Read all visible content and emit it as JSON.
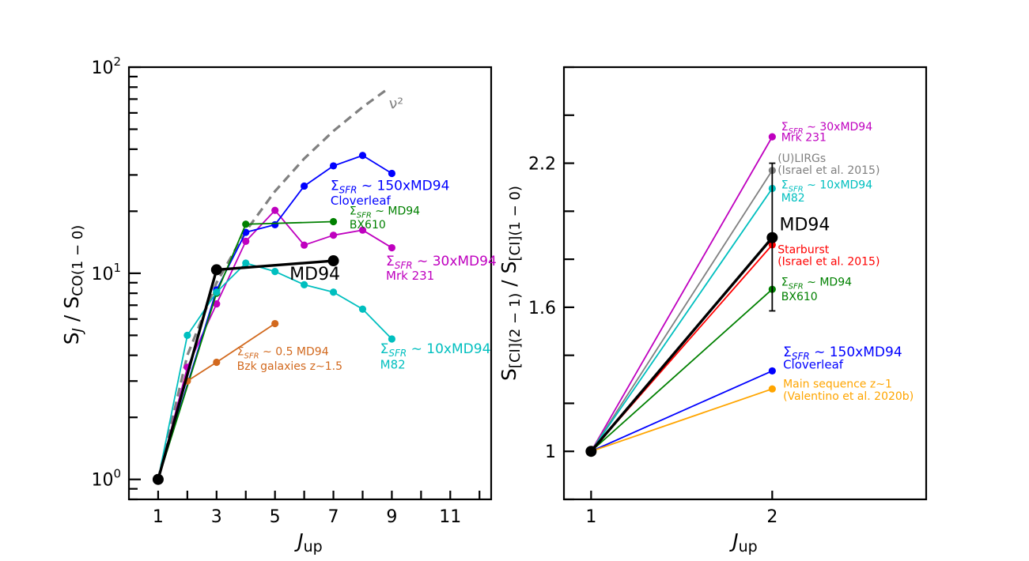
{
  "chart_data": [
    {
      "type": "line",
      "xlabel_main": "J",
      "xlabel_sub": "up",
      "ylabel_main": "S",
      "ylabel_j": "J",
      "ylabel_mid": " / S",
      "ylabel_sub": "CO(1 − 0)",
      "xscale": "linear",
      "yscale": "log",
      "xlim": [
        0,
        12.4
      ],
      "ylim": [
        0.8,
        100
      ],
      "xticks": [
        1,
        3,
        5,
        7,
        9,
        11
      ],
      "ytick_labels": [
        {
          "base": "10",
          "exp": "0",
          "value": 1
        },
        {
          "base": "10",
          "exp": "1",
          "value": 10
        },
        {
          "base": "10",
          "exp": "2",
          "value": 100
        }
      ],
      "grid": false,
      "legend": "none",
      "series": [
        {
          "id": "nu2",
          "color": "#808080",
          "dashed": true,
          "markers": false,
          "x": [
            1,
            2,
            3,
            4,
            5,
            6,
            7,
            8,
            8.85
          ],
          "y": [
            1,
            4,
            9,
            16,
            25,
            36,
            49,
            64,
            78.3
          ],
          "labels": [
            {
              "text": "ν²",
              "x": 8.9,
              "y": 63,
              "size": 19
            }
          ]
        },
        {
          "id": "mrk231",
          "color": "#bf00bf",
          "dashed": false,
          "markers": true,
          "x": [
            1,
            2,
            3,
            4,
            5,
            6,
            7,
            8,
            9
          ],
          "y": [
            1,
            3.5,
            7.1,
            14.3,
            20.2,
            13.7,
            15.3,
            16.2,
            13.3
          ],
          "labels": [
            {
              "text": "Σ",
              "sub": "SFR",
              "rest": " ∼ 30xMD94",
              "x": 8.8,
              "y": 10.9,
              "size": 17
            },
            {
              "text": "Mrk 231",
              "x": 8.8,
              "y": 9.3,
              "size": 15
            }
          ]
        },
        {
          "id": "cloverleaf",
          "color": "#0000ff",
          "dashed": false,
          "markers": true,
          "x": [
            1,
            3,
            4,
            5,
            6,
            7,
            8,
            9
          ],
          "y": [
            1,
            8.3,
            15.8,
            17.2,
            26.5,
            33.2,
            37.3,
            30.5
          ],
          "labels": [
            {
              "text": "Σ",
              "sub": "SFR",
              "rest": " ∼ 150xMD94",
              "x": 6.9,
              "y": 25.4,
              "size": 17
            },
            {
              "text": "Cloverleaf",
              "x": 6.9,
              "y": 21.5,
              "size": 15
            }
          ]
        },
        {
          "id": "bx610",
          "color": "#008000",
          "dashed": false,
          "markers": true,
          "x": [
            1,
            3,
            4,
            7
          ],
          "y": [
            1,
            8.0,
            17.3,
            17.8
          ],
          "labels": [
            {
              "text": "Σ",
              "sub": "SFR",
              "rest": " ∼  MD94",
              "x": 7.55,
              "y": 19.3,
              "size": 14
            },
            {
              "text": "BX610",
              "x": 7.55,
              "y": 16.5,
              "size": 14
            }
          ]
        },
        {
          "id": "m82",
          "color": "#00bfbf",
          "dashed": false,
          "markers": true,
          "x": [
            1,
            2,
            3,
            4,
            5,
            6,
            7,
            8,
            9
          ],
          "y": [
            1,
            5.0,
            8.1,
            11.2,
            10.2,
            8.8,
            8.1,
            6.7,
            4.8
          ],
          "labels": [
            {
              "text": "Σ",
              "sub": "SFR",
              "rest": " ∼ 10xMD94",
              "x": 8.6,
              "y": 4.1,
              "size": 17
            },
            {
              "text": "M82",
              "x": 8.6,
              "y": 3.45,
              "size": 15
            }
          ]
        },
        {
          "id": "bzk",
          "color": "#d2691e",
          "dashed": false,
          "markers": true,
          "x": [
            2,
            3,
            5
          ],
          "y": [
            3.0,
            3.7,
            5.7
          ],
          "labels": [
            {
              "text": "Σ",
              "sub": "SFR",
              "rest": " ∼ 0.5 MD94",
              "x": 3.7,
              "y": 4.0,
              "size": 14
            },
            {
              "text": "Bzk galaxies z∼1.5",
              "x": 3.7,
              "y": 3.4,
              "size": 14
            }
          ]
        },
        {
          "id": "md94",
          "color": "#000000",
          "dashed": false,
          "markers": true,
          "thick": true,
          "x": [
            1,
            3,
            7
          ],
          "y": [
            1,
            10.4,
            11.5
          ],
          "labels": [
            {
              "text": "MD94",
              "x": 5.5,
              "y": 9.3,
              "size": 22
            }
          ]
        }
      ]
    },
    {
      "type": "line",
      "xlabel_main": "J",
      "xlabel_sub": "up",
      "ylabel_main": "S",
      "ylabel_sub1": "[CI](2 − 1)",
      "ylabel_mid": " / S",
      "ylabel_sub2": "[CI](1 − 0)",
      "xscale": "linear",
      "yscale": "linear",
      "xlim": [
        0.85,
        2.85
      ],
      "ylim": [
        0.8,
        2.6
      ],
      "xticks": [
        1,
        2
      ],
      "yticks": [
        1,
        1.6,
        2.2
      ],
      "ytick_labels": [
        "1",
        "1.6",
        "2.2"
      ],
      "grid": false,
      "legend": "none",
      "series": [
        {
          "id": "mrk231",
          "color": "#bf00bf",
          "x": [
            1,
            2
          ],
          "y": [
            1,
            2.31
          ],
          "labels": [
            {
              "text": "Σ",
              "sub": "SFR",
              "rest": " ∼ 30xMD94",
              "x": 2.05,
              "y": 2.337,
              "size": 14
            },
            {
              "text": "Mrk 231",
              "x": 2.05,
              "y": 2.293,
              "size": 14
            }
          ]
        },
        {
          "id": "ulirgs",
          "color": "#808080",
          "x": [
            1,
            2
          ],
          "y": [
            1,
            2.17
          ],
          "labels": [
            {
              "text": "(U)LIRGs",
              "x": 2.03,
              "y": 2.205,
              "size": 14
            },
            {
              "text": "(Israel et al. 2015)",
              "x": 2.03,
              "y": 2.155,
              "size": 14
            }
          ]
        },
        {
          "id": "m82",
          "color": "#00bfbf",
          "x": [
            1,
            2
          ],
          "y": [
            1,
            2.095
          ],
          "labels": [
            {
              "text": "Σ",
              "sub": "SFR",
              "rest": " ∼ 10xMD94",
              "x": 2.05,
              "y": 2.095,
              "size": 14
            },
            {
              "text": "M82",
              "x": 2.05,
              "y": 2.04,
              "size": 14
            }
          ]
        },
        {
          "id": "starburst",
          "color": "#ff0000",
          "x": [
            1,
            2
          ],
          "y": [
            1,
            1.86
          ],
          "labels": [
            {
              "text": "Starburst",
              "x": 2.03,
              "y": 1.825,
              "size": 14
            },
            {
              "text": "(Israel et al. 2015)",
              "x": 2.03,
              "y": 1.775,
              "size": 14
            }
          ]
        },
        {
          "id": "md94",
          "color": "#000000",
          "x": [
            1,
            2
          ],
          "y": [
            1,
            1.89
          ],
          "thick": true,
          "errorbar": [
            1.585,
            2.2
          ],
          "labels": [
            {
              "text": "MD94",
              "x": 2.04,
              "y": 1.92,
              "size": 22
            }
          ]
        },
        {
          "id": "bx610",
          "color": "#008000",
          "x": [
            1,
            2
          ],
          "y": [
            1,
            1.675
          ],
          "labels": [
            {
              "text": "Σ",
              "sub": "SFR",
              "rest": " ∼  MD94",
              "x": 2.05,
              "y": 1.69,
              "size": 14
            },
            {
              "text": "BX610",
              "x": 2.05,
              "y": 1.63,
              "size": 14
            }
          ]
        },
        {
          "id": "cloverleaf",
          "color": "#0000ff",
          "x": [
            1,
            2
          ],
          "y": [
            1,
            1.335
          ],
          "labels": [
            {
              "text": "Σ",
              "sub": "SFR",
              "rest": " ∼ 150xMD94",
              "x": 2.06,
              "y": 1.395,
              "size": 17
            },
            {
              "text": "Cloverleaf",
              "x": 2.06,
              "y": 1.345,
              "size": 15
            }
          ]
        },
        {
          "id": "mainseq",
          "color": "#ffa500",
          "x": [
            1,
            2
          ],
          "y": [
            1,
            1.26
          ],
          "labels": [
            {
              "text": "Main sequence z∼1",
              "x": 2.06,
              "y": 1.265,
              "size": 14
            },
            {
              "text": "(Valentino et al. 2020b)",
              "x": 2.06,
              "y": 1.215,
              "size": 14
            }
          ]
        }
      ]
    }
  ]
}
